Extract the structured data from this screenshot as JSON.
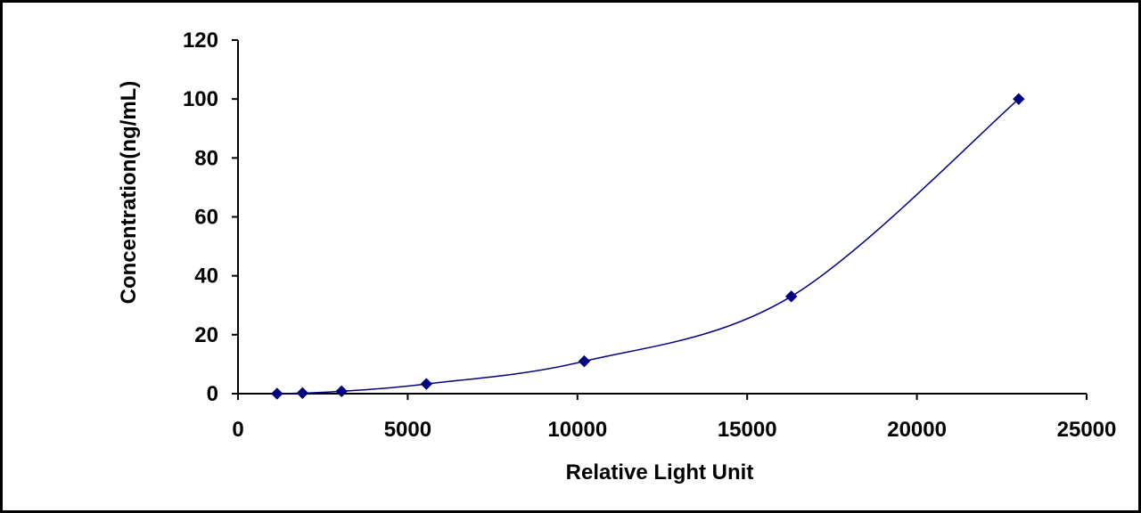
{
  "chart_data": {
    "type": "scatter",
    "title": "",
    "xlabel": "Relative Light Unit",
    "ylabel": "Concentration(ng/mL)",
    "xlim": [
      0,
      25000
    ],
    "ylim": [
      0,
      120
    ],
    "xticks": [
      "0",
      "5000",
      "10000",
      "15000",
      "20000",
      "25000"
    ],
    "yticks": [
      "0",
      "20",
      "40",
      "60",
      "80",
      "100",
      "120"
    ],
    "grid": false,
    "legend": "none",
    "marker": "diamond",
    "smoothed_line": true,
    "colors": {
      "series": "#000080",
      "axis": "#000000",
      "background": "#ffffff"
    },
    "series": [
      {
        "x": [
          1150,
          1900,
          3050,
          5550,
          10200,
          16300,
          23000
        ],
        "y": [
          0,
          0.2,
          0.8,
          3.3,
          11,
          33,
          100
        ]
      }
    ]
  }
}
